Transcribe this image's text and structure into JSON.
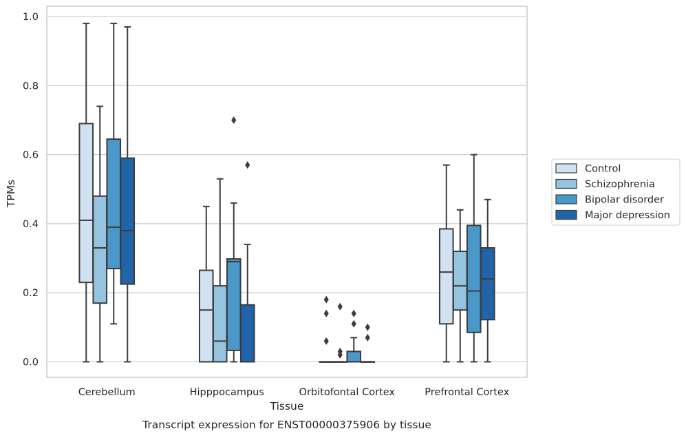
{
  "chart_data": {
    "type": "boxplot",
    "title": "",
    "caption": "Transcript expression for ENST00000375906 by tissue",
    "xlabel": "Tissue",
    "ylabel": "TPMs",
    "ylim": [
      -0.045,
      1.03
    ],
    "yticks": [
      0.0,
      0.2,
      0.4,
      0.6,
      0.8,
      1.0
    ],
    "ytick_labels": [
      "0.0",
      "0.2",
      "0.4",
      "0.6",
      "0.8",
      "1.0"
    ],
    "grid": "horizontal",
    "legend_position": "right",
    "categories": [
      "Cerebellum",
      "Hipppocampus",
      "Orbitofontal Cortex",
      "Prefrontal Cortex"
    ],
    "series": [
      {
        "name": "Control",
        "color": "#d0e1f2",
        "boxes": [
          {
            "min": 0.0,
            "q1": 0.23,
            "median": 0.41,
            "q3": 0.69,
            "max": 0.98,
            "outliers": []
          },
          {
            "min": 0.0,
            "q1": 0.0,
            "median": 0.15,
            "q3": 0.265,
            "max": 0.45,
            "outliers": []
          },
          {
            "min": 0.0,
            "q1": 0.0,
            "median": 0.0,
            "q3": 0.0,
            "max": 0.0,
            "outliers": [
              0.18,
              0.14,
              0.06
            ]
          },
          {
            "min": 0.0,
            "q1": 0.11,
            "median": 0.26,
            "q3": 0.385,
            "max": 0.57,
            "outliers": []
          }
        ]
      },
      {
        "name": "Schizophrenia",
        "color": "#94c4df",
        "boxes": [
          {
            "min": 0.0,
            "q1": 0.17,
            "median": 0.33,
            "q3": 0.48,
            "max": 0.74,
            "outliers": []
          },
          {
            "min": 0.0,
            "q1": 0.0,
            "median": 0.06,
            "q3": 0.22,
            "max": 0.53,
            "outliers": []
          },
          {
            "min": 0.0,
            "q1": 0.0,
            "median": 0.0,
            "q3": 0.0,
            "max": 0.0,
            "outliers": [
              0.16,
              0.03,
              0.02
            ]
          },
          {
            "min": 0.0,
            "q1": 0.15,
            "median": 0.22,
            "q3": 0.32,
            "max": 0.44,
            "outliers": []
          }
        ]
      },
      {
        "name": "Bipolar disorder",
        "color": "#4a98c9",
        "boxes": [
          {
            "min": 0.11,
            "q1": 0.27,
            "median": 0.39,
            "q3": 0.645,
            "max": 0.98,
            "outliers": []
          },
          {
            "min": 0.0,
            "q1": 0.033,
            "median": 0.29,
            "q3": 0.298,
            "max": 0.46,
            "outliers": [
              0.7
            ]
          },
          {
            "min": 0.0,
            "q1": 0.0,
            "median": 0.0,
            "q3": 0.03,
            "max": 0.07,
            "outliers": [
              0.14,
              0.11
            ]
          },
          {
            "min": 0.0,
            "q1": 0.085,
            "median": 0.205,
            "q3": 0.395,
            "max": 0.6,
            "outliers": []
          }
        ]
      },
      {
        "name": "Major depression",
        "color": "#2164aa",
        "boxes": [
          {
            "min": 0.0,
            "q1": 0.225,
            "median": 0.38,
            "q3": 0.59,
            "max": 0.97,
            "outliers": []
          },
          {
            "min": 0.0,
            "q1": 0.0,
            "median": 0.0,
            "q3": 0.165,
            "max": 0.34,
            "outliers": [
              0.57
            ]
          },
          {
            "min": 0.0,
            "q1": 0.0,
            "median": 0.0,
            "q3": 0.0,
            "max": 0.0,
            "outliers": [
              0.1,
              0.07
            ]
          },
          {
            "min": 0.0,
            "q1": 0.122,
            "median": 0.24,
            "q3": 0.33,
            "max": 0.47,
            "outliers": []
          }
        ]
      }
    ]
  }
}
